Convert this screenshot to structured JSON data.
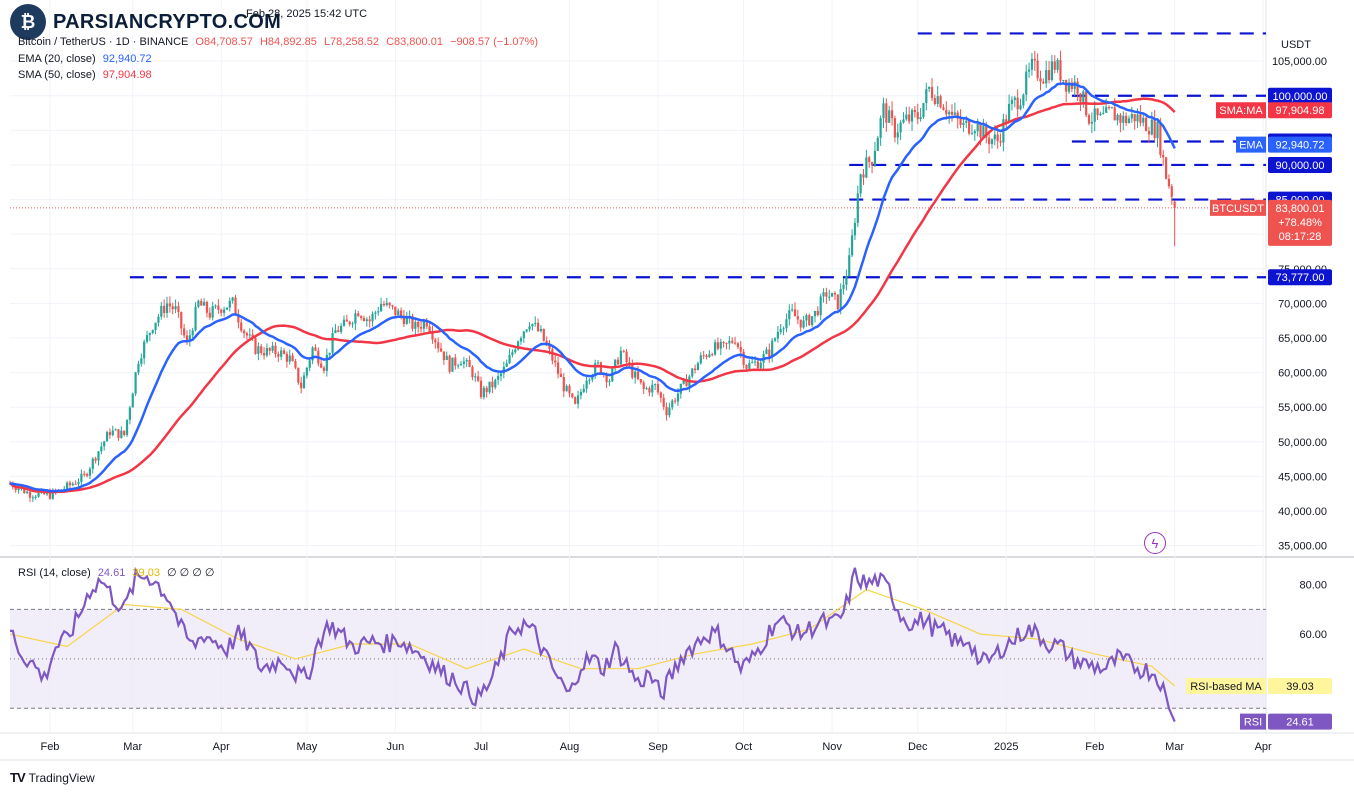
{
  "header": {
    "timestamp": "Feb 28, 2025 15:42 UTC",
    "symbol": "Bitcoin / TetherUS · 1D · BINANCE",
    "ohlc": {
      "o": "O84,708.57",
      "h": "H84,892.85",
      "l": "L78,258.52",
      "c": "C83,800.01",
      "chg": "−908.57 (−1.07%)"
    },
    "ema_label": "EMA (20, close)",
    "ema_value": "92,940.72",
    "sma_label": "SMA (50, close)",
    "sma_value": "97,904.98",
    "rsi_label": "RSI (14, close)",
    "rsi_value": "24.61",
    "rsi_ma_value": "39.03",
    "rsi_extra": "∅ ∅ ∅ ∅"
  },
  "watermark": {
    "text": "PARSIANCRYPTO.COM",
    "logo_icon": "chart-coin-icon"
  },
  "footer": {
    "brand": "TradingView"
  },
  "colors": {
    "up": "#26a69a",
    "down": "#ef5350",
    "ema": "#2962ff",
    "sma": "#f23645",
    "level": "#0d14d1",
    "rsi": "#7e57c2",
    "rsi_ma": "#f7d54a",
    "rsi_band": "#ede7f6"
  },
  "chart_data": [
    {
      "type": "candlestick",
      "title": "Bitcoin / TetherUS · 1D · BINANCE",
      "currency": "USDT",
      "ylim": [
        33500,
        109500
      ],
      "y_ticks": [
        35000,
        40000,
        45000,
        50000,
        55000,
        60000,
        65000,
        70000,
        75000,
        80000,
        105000
      ],
      "y_tick_labels": [
        "35,000.00",
        "40,000.00",
        "45,000.00",
        "50,000.00",
        "55,000.00",
        "60,000.00",
        "65,000.00",
        "70,000.00",
        "75,000.00",
        "80,000.00",
        "105,000.00"
      ],
      "x_labels": [
        "Feb",
        "Mar",
        "Apr",
        "May",
        "Jun",
        "Jul",
        "Aug",
        "Sep",
        "Oct",
        "Nov",
        "Dec",
        "2025",
        "Feb",
        "Mar",
        "Apr"
      ],
      "x_label_days": [
        14,
        43,
        74,
        104,
        135,
        165,
        196,
        227,
        257,
        288,
        318,
        349,
        380,
        408,
        439
      ],
      "close_series": [
        [
          0,
          44000
        ],
        [
          7,
          42500
        ],
        [
          14,
          42300
        ],
        [
          20,
          43500
        ],
        [
          26,
          45000
        ],
        [
          30,
          48000
        ],
        [
          35,
          51500
        ],
        [
          40,
          51000
        ],
        [
          45,
          62000
        ],
        [
          50,
          67000
        ],
        [
          55,
          70000
        ],
        [
          58,
          69000
        ],
        [
          62,
          64000
        ],
        [
          66,
          70000
        ],
        [
          70,
          68500
        ],
        [
          74,
          69500
        ],
        [
          78,
          70000
        ],
        [
          82,
          66000
        ],
        [
          86,
          63500
        ],
        [
          90,
          63000
        ],
        [
          94,
          63000
        ],
        [
          98,
          62000
        ],
        [
          102,
          58000
        ],
        [
          106,
          63500
        ],
        [
          110,
          61000
        ],
        [
          114,
          66000
        ],
        [
          118,
          67000
        ],
        [
          122,
          69000
        ],
        [
          126,
          67500
        ],
        [
          130,
          70000
        ],
        [
          134,
          69000
        ],
        [
          138,
          68000
        ],
        [
          142,
          66500
        ],
        [
          146,
          67500
        ],
        [
          150,
          64000
        ],
        [
          154,
          61000
        ],
        [
          158,
          62000
        ],
        [
          162,
          60000
        ],
        [
          165,
          57000
        ],
        [
          170,
          58500
        ],
        [
          174,
          61000
        ],
        [
          178,
          65000
        ],
        [
          182,
          67500
        ],
        [
          186,
          65500
        ],
        [
          190,
          62000
        ],
        [
          194,
          58000
        ],
        [
          198,
          55000
        ],
        [
          202,
          59500
        ],
        [
          206,
          61000
        ],
        [
          210,
          59000
        ],
        [
          214,
          63000
        ],
        [
          218,
          60000
        ],
        [
          222,
          57500
        ],
        [
          226,
          58000
        ],
        [
          230,
          54500
        ],
        [
          234,
          57000
        ],
        [
          238,
          59500
        ],
        [
          242,
          62000
        ],
        [
          246,
          63500
        ],
        [
          250,
          63500
        ],
        [
          254,
          65000
        ],
        [
          258,
          61000
        ],
        [
          262,
          61500
        ],
        [
          266,
          63000
        ],
        [
          270,
          67000
        ],
        [
          274,
          68500
        ],
        [
          278,
          67000
        ],
        [
          282,
          68500
        ],
        [
          286,
          71500
        ],
        [
          290,
          70000
        ],
        [
          294,
          76000
        ],
        [
          298,
          89000
        ],
        [
          302,
          91000
        ],
        [
          306,
          98000
        ],
        [
          310,
          95000
        ],
        [
          314,
          96500
        ],
        [
          318,
          97000
        ],
        [
          322,
          101000
        ],
        [
          326,
          99500
        ],
        [
          330,
          97000
        ],
        [
          334,
          95500
        ],
        [
          338,
          96000
        ],
        [
          342,
          94000
        ],
        [
          346,
          93500
        ],
        [
          350,
          98000
        ],
        [
          354,
          100000
        ],
        [
          358,
          104000
        ],
        [
          362,
          103000
        ],
        [
          366,
          104500
        ],
        [
          370,
          102000
        ],
        [
          374,
          101500
        ],
        [
          378,
          97000
        ],
        [
          382,
          96500
        ],
        [
          386,
          97500
        ],
        [
          390,
          96500
        ],
        [
          394,
          97000
        ],
        [
          398,
          96000
        ],
        [
          402,
          95000
        ],
        [
          405,
          88500
        ],
        [
          407,
          86000
        ],
        [
          408,
          83800
        ]
      ],
      "ema": {
        "name": "EMA",
        "value": 92940.72
      },
      "sma": {
        "name": "SMA:MA",
        "value": 97904.98
      },
      "levels": [
        73777,
        85000,
        90000,
        93388,
        100000,
        109000
      ],
      "level_labels": [
        "73,777.00",
        "85,000.00",
        "90,000.00",
        "93,388.00",
        "100,000.00"
      ],
      "price_tag": {
        "name": "BTCUSDT",
        "value": 83800.01,
        "lines": [
          "83,800.01",
          "+78.48%",
          "08:17:28"
        ]
      },
      "last_low": 78258.52
    },
    {
      "type": "line",
      "title": "RSI (14, close)",
      "ylim": [
        20,
        90
      ],
      "y_ticks": [
        60,
        80
      ],
      "y_tick_labels": [
        "60.00",
        "80.00"
      ],
      "bands": [
        30,
        50,
        70
      ],
      "series": [
        {
          "name": "RSI",
          "value": 24.61,
          "label": "24.61"
        },
        {
          "name": "RSI-based MA",
          "value": 39.03,
          "label": "39.03"
        }
      ],
      "rsi_points": [
        [
          0,
          62
        ],
        [
          4,
          52
        ],
        [
          8,
          48
        ],
        [
          12,
          42
        ],
        [
          16,
          55
        ],
        [
          20,
          58
        ],
        [
          24,
          67
        ],
        [
          28,
          78
        ],
        [
          32,
          82
        ],
        [
          36,
          75
        ],
        [
          40,
          70
        ],
        [
          44,
          82
        ],
        [
          48,
          84
        ],
        [
          52,
          80
        ],
        [
          56,
          74
        ],
        [
          60,
          62
        ],
        [
          64,
          55
        ],
        [
          68,
          60
        ],
        [
          72,
          57
        ],
        [
          76,
          54
        ],
        [
          80,
          60
        ],
        [
          84,
          55
        ],
        [
          88,
          46
        ],
        [
          92,
          48
        ],
        [
          96,
          50
        ],
        [
          100,
          44
        ],
        [
          104,
          42
        ],
        [
          108,
          57
        ],
        [
          112,
          64
        ],
        [
          116,
          60
        ],
        [
          120,
          55
        ],
        [
          124,
          56
        ],
        [
          128,
          57
        ],
        [
          132,
          56
        ],
        [
          136,
          58
        ],
        [
          140,
          55
        ],
        [
          144,
          52
        ],
        [
          148,
          48
        ],
        [
          152,
          44
        ],
        [
          156,
          42
        ],
        [
          160,
          37
        ],
        [
          164,
          34
        ],
        [
          168,
          40
        ],
        [
          172,
          50
        ],
        [
          176,
          62
        ],
        [
          180,
          64
        ],
        [
          184,
          60
        ],
        [
          188,
          50
        ],
        [
          192,
          42
        ],
        [
          196,
          35
        ],
        [
          200,
          48
        ],
        [
          204,
          50
        ],
        [
          208,
          46
        ],
        [
          212,
          54
        ],
        [
          216,
          48
        ],
        [
          220,
          40
        ],
        [
          224,
          44
        ],
        [
          228,
          35
        ],
        [
          232,
          44
        ],
        [
          236,
          52
        ],
        [
          240,
          56
        ],
        [
          244,
          60
        ],
        [
          248,
          60
        ],
        [
          252,
          54
        ],
        [
          256,
          46
        ],
        [
          260,
          50
        ],
        [
          264,
          57
        ],
        [
          268,
          65
        ],
        [
          272,
          64
        ],
        [
          276,
          60
        ],
        [
          280,
          62
        ],
        [
          284,
          65
        ],
        [
          288,
          64
        ],
        [
          292,
          68
        ],
        [
          296,
          84
        ],
        [
          300,
          80
        ],
        [
          304,
          82
        ],
        [
          308,
          78
        ],
        [
          312,
          68
        ],
        [
          316,
          64
        ],
        [
          320,
          66
        ],
        [
          324,
          62
        ],
        [
          328,
          60
        ],
        [
          332,
          56
        ],
        [
          336,
          58
        ],
        [
          340,
          48
        ],
        [
          344,
          50
        ],
        [
          348,
          55
        ],
        [
          352,
          58
        ],
        [
          356,
          62
        ],
        [
          360,
          60
        ],
        [
          364,
          56
        ],
        [
          368,
          55
        ],
        [
          372,
          50
        ],
        [
          376,
          48
        ],
        [
          380,
          47
        ],
        [
          384,
          46
        ],
        [
          388,
          50
        ],
        [
          392,
          48
        ],
        [
          396,
          46
        ],
        [
          400,
          45
        ],
        [
          404,
          40
        ],
        [
          406,
          30
        ],
        [
          408,
          24.61
        ]
      ],
      "rsi_ma_points": [
        [
          0,
          60
        ],
        [
          20,
          55
        ],
        [
          40,
          72
        ],
        [
          60,
          70
        ],
        [
          80,
          58
        ],
        [
          100,
          50
        ],
        [
          120,
          56
        ],
        [
          140,
          56
        ],
        [
          160,
          46
        ],
        [
          180,
          54
        ],
        [
          200,
          46
        ],
        [
          220,
          46
        ],
        [
          240,
          52
        ],
        [
          260,
          56
        ],
        [
          280,
          62
        ],
        [
          300,
          78
        ],
        [
          320,
          70
        ],
        [
          340,
          60
        ],
        [
          360,
          58
        ],
        [
          380,
          52
        ],
        [
          400,
          47
        ],
        [
          408,
          39.03
        ]
      ]
    }
  ]
}
